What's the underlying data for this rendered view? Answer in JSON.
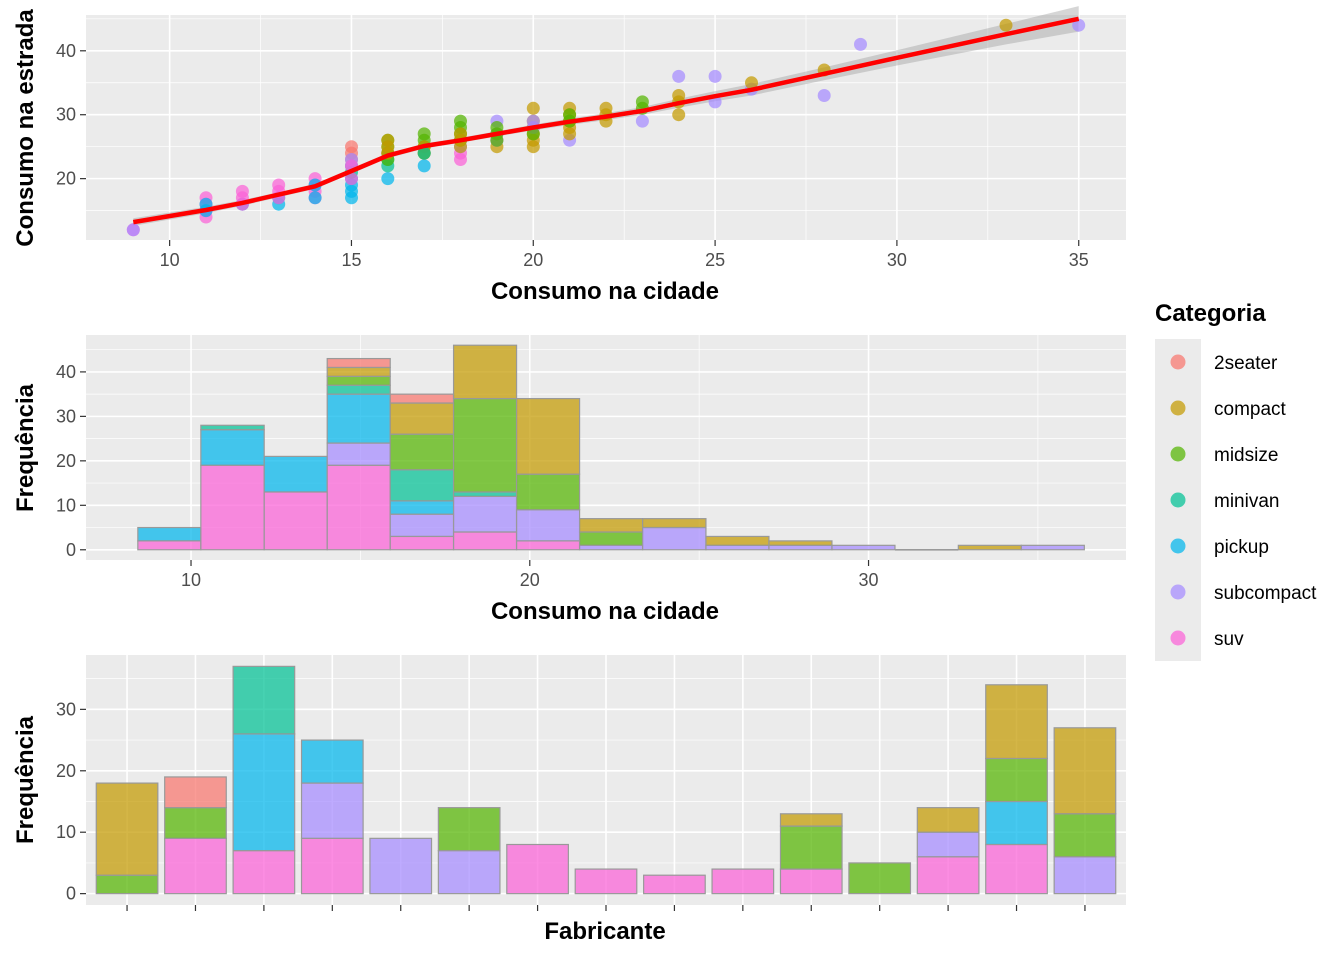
{
  "legend": {
    "title": "Categoria",
    "position": "right",
    "items": [
      {
        "label": "2seater",
        "color": "#F8766D"
      },
      {
        "label": "compact",
        "color": "#C49A00"
      },
      {
        "label": "midsize",
        "color": "#53B400"
      },
      {
        "label": "minivan",
        "color": "#00C094"
      },
      {
        "label": "pickup",
        "color": "#00B6EB"
      },
      {
        "label": "subcompact",
        "color": "#A58AFF"
      },
      {
        "label": "suv",
        "color": "#FB61D7"
      }
    ]
  },
  "chart_data": [
    {
      "type": "scatter",
      "xlabel": "Consumo na cidade",
      "ylabel": "Consumo na estrada",
      "xlim": [
        7.7,
        36.3
      ],
      "ylim": [
        10.4,
        45.6
      ],
      "xticks": [
        10,
        15,
        20,
        25,
        30,
        35
      ],
      "yticks": [
        20,
        30,
        40
      ],
      "grid": true,
      "points": [
        {
          "x": 9,
          "y": 12,
          "c": "suv"
        },
        {
          "x": 9,
          "y": 12,
          "c": "subcompact"
        },
        {
          "x": 11,
          "y": 14,
          "c": "suv"
        },
        {
          "x": 11,
          "y": 15,
          "c": "suv"
        },
        {
          "x": 11,
          "y": 16,
          "c": "suv"
        },
        {
          "x": 11,
          "y": 17,
          "c": "suv"
        },
        {
          "x": 11,
          "y": 15,
          "c": "pickup"
        },
        {
          "x": 11,
          "y": 16,
          "c": "pickup"
        },
        {
          "x": 12,
          "y": 16,
          "c": "pickup"
        },
        {
          "x": 12,
          "y": 16,
          "c": "suv"
        },
        {
          "x": 12,
          "y": 17,
          "c": "suv"
        },
        {
          "x": 12,
          "y": 18,
          "c": "suv"
        },
        {
          "x": 13,
          "y": 16,
          "c": "pickup"
        },
        {
          "x": 13,
          "y": 17,
          "c": "pickup"
        },
        {
          "x": 13,
          "y": 17,
          "c": "suv"
        },
        {
          "x": 13,
          "y": 18,
          "c": "suv"
        },
        {
          "x": 13,
          "y": 19,
          "c": "suv"
        },
        {
          "x": 14,
          "y": 17,
          "c": "suv"
        },
        {
          "x": 14,
          "y": 18,
          "c": "suv"
        },
        {
          "x": 14,
          "y": 19,
          "c": "suv"
        },
        {
          "x": 14,
          "y": 20,
          "c": "suv"
        },
        {
          "x": 14,
          "y": 17,
          "c": "pickup"
        },
        {
          "x": 14,
          "y": 19,
          "c": "pickup"
        },
        {
          "x": 15,
          "y": 17,
          "c": "pickup"
        },
        {
          "x": 15,
          "y": 18,
          "c": "pickup"
        },
        {
          "x": 15,
          "y": 19,
          "c": "pickup"
        },
        {
          "x": 15,
          "y": 20,
          "c": "pickup"
        },
        {
          "x": 15,
          "y": 21,
          "c": "minivan"
        },
        {
          "x": 15,
          "y": 22,
          "c": "minivan"
        },
        {
          "x": 15,
          "y": 23,
          "c": "2seater"
        },
        {
          "x": 15,
          "y": 24,
          "c": "2seater"
        },
        {
          "x": 15,
          "y": 25,
          "c": "2seater"
        },
        {
          "x": 15,
          "y": 22,
          "c": "subcompact"
        },
        {
          "x": 15,
          "y": 23,
          "c": "subcompact"
        },
        {
          "x": 15,
          "y": 20,
          "c": "suv"
        },
        {
          "x": 15,
          "y": 22,
          "c": "suv"
        },
        {
          "x": 16,
          "y": 20,
          "c": "pickup"
        },
        {
          "x": 16,
          "y": 22,
          "c": "minivan"
        },
        {
          "x": 16,
          "y": 23,
          "c": "minivan"
        },
        {
          "x": 16,
          "y": 24,
          "c": "2seater"
        },
        {
          "x": 16,
          "y": 23,
          "c": "midsize"
        },
        {
          "x": 16,
          "y": 24,
          "c": "midsize"
        },
        {
          "x": 16,
          "y": 25,
          "c": "midsize"
        },
        {
          "x": 16,
          "y": 26,
          "c": "midsize"
        },
        {
          "x": 16,
          "y": 24,
          "c": "compact"
        },
        {
          "x": 16,
          "y": 25,
          "c": "compact"
        },
        {
          "x": 16,
          "y": 26,
          "c": "compact"
        },
        {
          "x": 17,
          "y": 22,
          "c": "pickup"
        },
        {
          "x": 17,
          "y": 24,
          "c": "midsize"
        },
        {
          "x": 17,
          "y": 25,
          "c": "midsize"
        },
        {
          "x": 17,
          "y": 26,
          "c": "midsize"
        },
        {
          "x": 17,
          "y": 27,
          "c": "midsize"
        },
        {
          "x": 17,
          "y": 24,
          "c": "compact"
        },
        {
          "x": 17,
          "y": 25,
          "c": "compact"
        },
        {
          "x": 17,
          "y": 24,
          "c": "minivan"
        },
        {
          "x": 18,
          "y": 23,
          "c": "suv"
        },
        {
          "x": 18,
          "y": 24,
          "c": "suv"
        },
        {
          "x": 18,
          "y": 25,
          "c": "subcompact"
        },
        {
          "x": 18,
          "y": 26,
          "c": "subcompact"
        },
        {
          "x": 18,
          "y": 26,
          "c": "midsize"
        },
        {
          "x": 18,
          "y": 27,
          "c": "midsize"
        },
        {
          "x": 18,
          "y": 28,
          "c": "midsize"
        },
        {
          "x": 18,
          "y": 29,
          "c": "midsize"
        },
        {
          "x": 18,
          "y": 25,
          "c": "compact"
        },
        {
          "x": 18,
          "y": 26,
          "c": "compact"
        },
        {
          "x": 18,
          "y": 27,
          "c": "compact"
        },
        {
          "x": 19,
          "y": 25,
          "c": "compact"
        },
        {
          "x": 19,
          "y": 26,
          "c": "compact"
        },
        {
          "x": 19,
          "y": 26,
          "c": "subcompact"
        },
        {
          "x": 19,
          "y": 27,
          "c": "subcompact"
        },
        {
          "x": 19,
          "y": 29,
          "c": "subcompact"
        },
        {
          "x": 19,
          "y": 26,
          "c": "midsize"
        },
        {
          "x": 19,
          "y": 27,
          "c": "midsize"
        },
        {
          "x": 19,
          "y": 28,
          "c": "midsize"
        },
        {
          "x": 20,
          "y": 25,
          "c": "compact"
        },
        {
          "x": 20,
          "y": 26,
          "c": "compact"
        },
        {
          "x": 20,
          "y": 27,
          "c": "compact"
        },
        {
          "x": 20,
          "y": 28,
          "c": "compact"
        },
        {
          "x": 20,
          "y": 29,
          "c": "compact"
        },
        {
          "x": 20,
          "y": 31,
          "c": "compact"
        },
        {
          "x": 20,
          "y": 28,
          "c": "subcompact"
        },
        {
          "x": 20,
          "y": 29,
          "c": "subcompact"
        },
        {
          "x": 20,
          "y": 27,
          "c": "midsize"
        },
        {
          "x": 21,
          "y": 26,
          "c": "subcompact"
        },
        {
          "x": 21,
          "y": 27,
          "c": "compact"
        },
        {
          "x": 21,
          "y": 28,
          "c": "compact"
        },
        {
          "x": 21,
          "y": 29,
          "c": "compact"
        },
        {
          "x": 21,
          "y": 30,
          "c": "compact"
        },
        {
          "x": 21,
          "y": 31,
          "c": "compact"
        },
        {
          "x": 21,
          "y": 29,
          "c": "midsize"
        },
        {
          "x": 21,
          "y": 30,
          "c": "midsize"
        },
        {
          "x": 22,
          "y": 29,
          "c": "compact"
        },
        {
          "x": 22,
          "y": 30,
          "c": "compact"
        },
        {
          "x": 22,
          "y": 31,
          "c": "compact"
        },
        {
          "x": 23,
          "y": 29,
          "c": "subcompact"
        },
        {
          "x": 23,
          "y": 31,
          "c": "midsize"
        },
        {
          "x": 23,
          "y": 32,
          "c": "midsize"
        },
        {
          "x": 24,
          "y": 30,
          "c": "compact"
        },
        {
          "x": 24,
          "y": 32,
          "c": "compact"
        },
        {
          "x": 24,
          "y": 33,
          "c": "compact"
        },
        {
          "x": 24,
          "y": 36,
          "c": "subcompact"
        },
        {
          "x": 25,
          "y": 32,
          "c": "subcompact"
        },
        {
          "x": 25,
          "y": 36,
          "c": "subcompact"
        },
        {
          "x": 26,
          "y": 34,
          "c": "subcompact"
        },
        {
          "x": 26,
          "y": 35,
          "c": "compact"
        },
        {
          "x": 28,
          "y": 33,
          "c": "subcompact"
        },
        {
          "x": 28,
          "y": 37,
          "c": "compact"
        },
        {
          "x": 29,
          "y": 41,
          "c": "subcompact"
        },
        {
          "x": 33,
          "y": 44,
          "c": "compact"
        },
        {
          "x": 35,
          "y": 44,
          "c": "subcompact"
        }
      ],
      "smooth": {
        "color": "#FF0000",
        "x": [
          9,
          11,
          12,
          13,
          14,
          15,
          16,
          17,
          18,
          19,
          20,
          21,
          22,
          23,
          24,
          25,
          26,
          28,
          30,
          33,
          35
        ],
        "y": [
          13.2,
          15.1,
          16.2,
          17.5,
          18.8,
          21.2,
          23.6,
          25.1,
          26.0,
          27.0,
          28.0,
          28.9,
          29.7,
          30.6,
          31.8,
          32.9,
          33.9,
          36.4,
          38.9,
          42.6,
          45.0
        ],
        "band": [
          0.6,
          0.5,
          0.45,
          0.4,
          0.4,
          0.4,
          0.4,
          0.4,
          0.4,
          0.4,
          0.45,
          0.5,
          0.55,
          0.6,
          0.7,
          0.8,
          0.9,
          1.0,
          1.2,
          1.6,
          2.0
        ]
      }
    },
    {
      "type": "bar",
      "xlabel": "Consumo na cidade",
      "ylabel": "Frequência",
      "xlim": [
        6.9,
        37.6
      ],
      "ylim": [
        -2.3,
        48.3
      ],
      "xticks": [
        10,
        20,
        30
      ],
      "yticks": [
        0,
        10,
        20,
        30,
        40
      ],
      "grid": true,
      "stack_order": [
        "suv",
        "subcompact",
        "pickup",
        "minivan",
        "midsize",
        "compact",
        "2seater"
      ],
      "bins": [
        {
          "x0": 8.43,
          "x1": 10.29,
          "counts": {
            "suv": 2,
            "pickup": 3
          }
        },
        {
          "x0": 10.29,
          "x1": 12.16,
          "counts": {
            "suv": 19,
            "pickup": 8,
            "minivan": 1
          }
        },
        {
          "x0": 12.16,
          "x1": 14.02,
          "counts": {
            "suv": 13,
            "pickup": 8
          }
        },
        {
          "x0": 14.02,
          "x1": 15.88,
          "counts": {
            "suv": 19,
            "subcompact": 5,
            "pickup": 11,
            "minivan": 2,
            "midsize": 2,
            "compact": 2,
            "2seater": 2
          }
        },
        {
          "x0": 15.88,
          "x1": 17.75,
          "counts": {
            "suv": 3,
            "subcompact": 5,
            "pickup": 3,
            "minivan": 7,
            "midsize": 8,
            "compact": 7,
            "2seater": 2
          }
        },
        {
          "x0": 17.75,
          "x1": 19.61,
          "counts": {
            "suv": 4,
            "subcompact": 8,
            "minivan": 1,
            "midsize": 21,
            "compact": 12
          }
        },
        {
          "x0": 19.61,
          "x1": 21.47,
          "counts": {
            "suv": 2,
            "subcompact": 7,
            "midsize": 8,
            "compact": 17
          }
        },
        {
          "x0": 21.47,
          "x1": 23.33,
          "counts": {
            "subcompact": 1,
            "midsize": 3,
            "compact": 3
          }
        },
        {
          "x0": 23.33,
          "x1": 25.2,
          "counts": {
            "subcompact": 5,
            "compact": 2
          }
        },
        {
          "x0": 25.2,
          "x1": 27.06,
          "counts": {
            "subcompact": 1,
            "compact": 2
          }
        },
        {
          "x0": 27.06,
          "x1": 28.92,
          "counts": {
            "subcompact": 1,
            "compact": 1
          }
        },
        {
          "x0": 28.92,
          "x1": 30.78,
          "counts": {
            "subcompact": 1
          }
        },
        {
          "x0": 30.78,
          "x1": 32.65,
          "counts": {}
        },
        {
          "x0": 32.65,
          "x1": 34.51,
          "counts": {
            "compact": 1
          }
        },
        {
          "x0": 34.51,
          "x1": 36.37,
          "counts": {
            "subcompact": 1
          }
        }
      ]
    },
    {
      "type": "bar",
      "xlabel": "Fabricante",
      "ylabel": "Frequência",
      "ylim": [
        -1.85,
        38.85
      ],
      "yticks": [
        0,
        10,
        20,
        30
      ],
      "grid": true,
      "stack_order": [
        "suv",
        "subcompact",
        "pickup",
        "minivan",
        "midsize",
        "compact",
        "2seater"
      ],
      "groups": [
        {
          "counts": {
            "midsize": 3,
            "compact": 15
          }
        },
        {
          "counts": {
            "suv": 9,
            "midsize": 5,
            "2seater": 5
          }
        },
        {
          "counts": {
            "suv": 7,
            "pickup": 19,
            "minivan": 11
          }
        },
        {
          "counts": {
            "suv": 9,
            "subcompact": 9,
            "pickup": 7
          }
        },
        {
          "counts": {
            "subcompact": 9
          }
        },
        {
          "counts": {
            "subcompact": 7,
            "midsize": 7
          }
        },
        {
          "counts": {
            "suv": 8
          }
        },
        {
          "counts": {
            "suv": 4
          }
        },
        {
          "counts": {
            "suv": 3
          }
        },
        {
          "counts": {
            "suv": 4
          }
        },
        {
          "counts": {
            "suv": 4,
            "midsize": 7,
            "compact": 2
          }
        },
        {
          "counts": {
            "midsize": 5
          }
        },
        {
          "counts": {
            "suv": 6,
            "subcompact": 4,
            "compact": 4
          }
        },
        {
          "counts": {
            "suv": 8,
            "pickup": 7,
            "midsize": 7,
            "compact": 12
          }
        },
        {
          "counts": {
            "subcompact": 6,
            "midsize": 7,
            "compact": 14
          }
        }
      ]
    }
  ]
}
